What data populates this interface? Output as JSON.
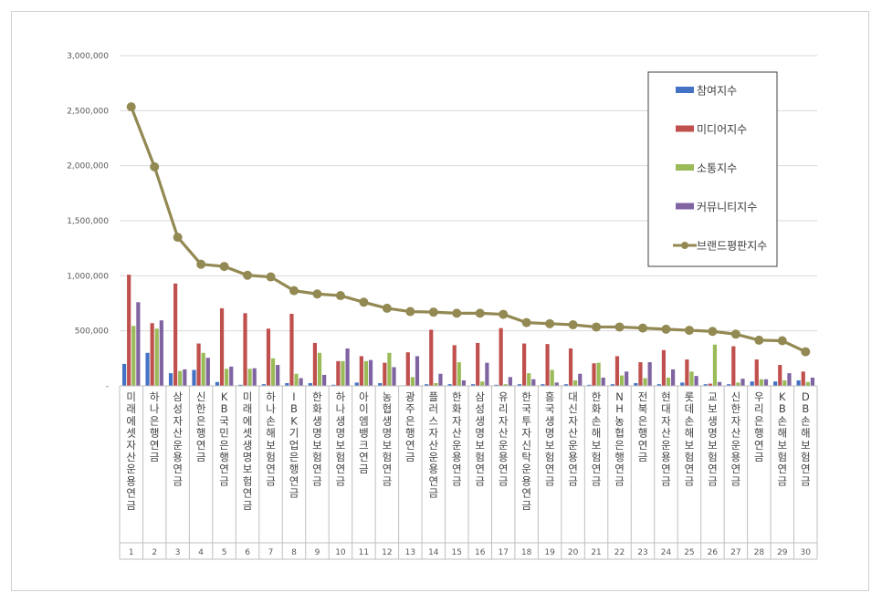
{
  "chart_data": {
    "type": "bar",
    "title": "",
    "xlabel": "",
    "ylabel": "",
    "ylim": [
      0,
      3000000
    ],
    "yticks": [
      {
        "value": 0,
        "label": "-"
      },
      {
        "value": 500000,
        "label": "500,000"
      },
      {
        "value": 1000000,
        "label": "1,000,000"
      },
      {
        "value": 1500000,
        "label": "1,500,000"
      },
      {
        "value": 2000000,
        "label": "2,000,000"
      },
      {
        "value": 2500000,
        "label": "2,500,000"
      },
      {
        "value": 3000000,
        "label": "3,000,000"
      }
    ],
    "grid": true,
    "legend_position": "top-right",
    "categories": [
      "미래에셋자산운용 연금",
      "하나은행 연금",
      "삼성자산운용 연금",
      "신한은행 연금",
      "KB국민은행 연금",
      "미래에셋생명보험 연금",
      "하나손해보험 연금",
      "IBK기업은행 연금",
      "한화생명보험 연금",
      "하나생명보험 연금",
      "아이엠뱅크 연금",
      "농협생명보험 연금",
      "광주은행 연금",
      "플러스자산운용 연금",
      "한화자산운용 연금",
      "삼성생명보험 연금",
      "유리자산운용 연금",
      "한국투자신탁운용 연금",
      "흥국생명보험 연금",
      "대신자산운용 연금",
      "한화손해보험 연금",
      "NH농협은행 연금",
      "전북은행 연금",
      "현대자산운용 연금",
      "롯데손해보험 연금",
      "교보생명보험 연금",
      "신한자산운용 연금",
      "우리은행 연금",
      "KB손해보험 연금",
      "DB손해보험 연금"
    ],
    "ranks": [
      "1",
      "2",
      "3",
      "4",
      "5",
      "6",
      "7",
      "8",
      "9",
      "10",
      "11",
      "12",
      "13",
      "14",
      "15",
      "16",
      "17",
      "18",
      "19",
      "20",
      "21",
      "22",
      "23",
      "24",
      "25",
      "26",
      "27",
      "28",
      "29",
      "30"
    ],
    "series": [
      {
        "name": "참여지수",
        "kind": "bar",
        "color": "#4472c4",
        "values": [
          200000,
          300000,
          115000,
          145000,
          35000,
          10000,
          15000,
          25000,
          25000,
          10000,
          30000,
          25000,
          5000,
          15000,
          15000,
          15000,
          10000,
          15000,
          15000,
          15000,
          10000,
          15000,
          25000,
          15000,
          30000,
          15000,
          15000,
          40000,
          40000,
          50000
        ]
      },
      {
        "name": "미디어지수",
        "kind": "bar",
        "color": "#c0504d",
        "values": [
          1010000,
          570000,
          930000,
          385000,
          705000,
          660000,
          520000,
          655000,
          390000,
          225000,
          270000,
          210000,
          305000,
          510000,
          370000,
          390000,
          525000,
          385000,
          380000,
          340000,
          205000,
          270000,
          215000,
          325000,
          240000,
          20000,
          360000,
          240000,
          190000,
          130000
        ]
      },
      {
        "name": "소통지수",
        "kind": "bar",
        "color": "#9bbb59",
        "values": [
          545000,
          520000,
          135000,
          300000,
          155000,
          155000,
          250000,
          110000,
          300000,
          225000,
          225000,
          300000,
          80000,
          25000,
          215000,
          40000,
          15000,
          115000,
          145000,
          50000,
          210000,
          95000,
          70000,
          75000,
          130000,
          375000,
          30000,
          60000,
          50000,
          35000
        ]
      },
      {
        "name": "커뮤니티지수",
        "kind": "bar",
        "color": "#8064a2",
        "values": [
          760000,
          595000,
          150000,
          255000,
          175000,
          160000,
          190000,
          70000,
          100000,
          340000,
          235000,
          170000,
          270000,
          110000,
          50000,
          210000,
          80000,
          60000,
          30000,
          110000,
          75000,
          130000,
          215000,
          150000,
          90000,
          35000,
          65000,
          60000,
          115000,
          75000
        ]
      },
      {
        "name": "브랜드평판지수",
        "kind": "line",
        "color": "#938953",
        "values": [
          2535000,
          1990000,
          1350000,
          1105000,
          1085000,
          1005000,
          990000,
          865000,
          835000,
          820000,
          760000,
          705000,
          675000,
          670000,
          660000,
          660000,
          650000,
          575000,
          565000,
          555000,
          535000,
          535000,
          525000,
          515000,
          505000,
          495000,
          470000,
          415000,
          410000,
          310000
        ]
      }
    ]
  }
}
